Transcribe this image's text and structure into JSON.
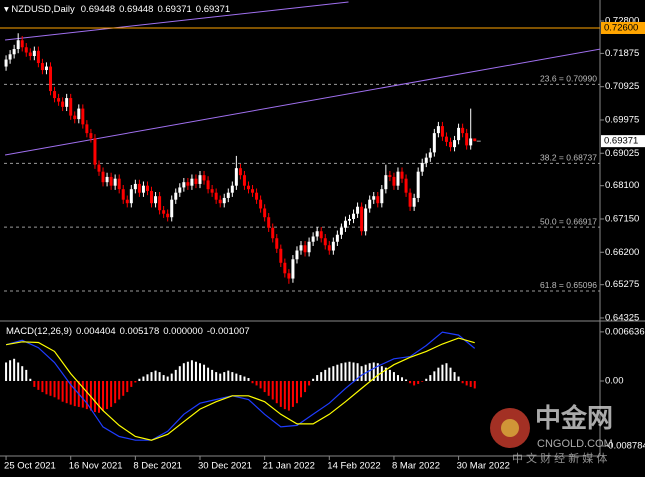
{
  "chart_data": [
    {
      "type": "candlestick",
      "title": "NZDUSD,Daily",
      "ohlc": [
        [
          0.715,
          0.7182,
          0.7138,
          0.717
        ],
        [
          0.717,
          0.7197,
          0.7158,
          0.7185
        ],
        [
          0.7185,
          0.7212,
          0.7173,
          0.72
        ],
        [
          0.72,
          0.7245,
          0.7188,
          0.7225
        ],
        [
          0.7225,
          0.7237,
          0.7193,
          0.7205
        ],
        [
          0.7205,
          0.7217,
          0.7178,
          0.719
        ],
        [
          0.719,
          0.7202,
          0.7168,
          0.718
        ],
        [
          0.718,
          0.7207,
          0.7168,
          0.7195
        ],
        [
          0.7195,
          0.7207,
          0.7148,
          0.716
        ],
        [
          0.716,
          0.7172,
          0.7128,
          0.714
        ],
        [
          0.714,
          0.7162,
          0.7128,
          0.715
        ],
        [
          0.715,
          0.7162,
          0.7068,
          0.708
        ],
        [
          0.708,
          0.7092,
          0.7048,
          0.706
        ],
        [
          0.706,
          0.7072,
          0.7038,
          0.705
        ],
        [
          0.705,
          0.7062,
          0.7023,
          0.7035
        ],
        [
          0.7035,
          0.7072,
          0.7023,
          0.706
        ],
        [
          0.706,
          0.7072,
          0.6998,
          0.701
        ],
        [
          0.701,
          0.7022,
          0.6988,
          0.7
        ],
        [
          0.7,
          0.7042,
          0.6988,
          0.703
        ],
        [
          0.703,
          0.7042,
          0.6973,
          0.6985
        ],
        [
          0.6985,
          0.6997,
          0.6948,
          0.696
        ],
        [
          0.696,
          0.6972,
          0.6933,
          0.6945
        ],
        [
          0.6945,
          0.6957,
          0.6858,
          0.687
        ],
        [
          0.687,
          0.6882,
          0.6838,
          0.685
        ],
        [
          0.685,
          0.6862,
          0.6808,
          0.682
        ],
        [
          0.682,
          0.6847,
          0.6808,
          0.6835
        ],
        [
          0.6835,
          0.6847,
          0.6798,
          0.681
        ],
        [
          0.681,
          0.6842,
          0.6798,
          0.683
        ],
        [
          0.683,
          0.6842,
          0.6788,
          0.68
        ],
        [
          0.68,
          0.6812,
          0.6758,
          0.677
        ],
        [
          0.677,
          0.6782,
          0.6748,
          0.676
        ],
        [
          0.676,
          0.6812,
          0.6748,
          0.68
        ],
        [
          0.68,
          0.6827,
          0.6788,
          0.6815
        ],
        [
          0.6815,
          0.6827,
          0.6778,
          0.679
        ],
        [
          0.679,
          0.6822,
          0.6778,
          0.681
        ],
        [
          0.681,
          0.6822,
          0.6783,
          0.6795
        ],
        [
          0.6795,
          0.6807,
          0.6748,
          0.676
        ],
        [
          0.676,
          0.6792,
          0.6748,
          0.678
        ],
        [
          0.678,
          0.6792,
          0.6728,
          0.674
        ],
        [
          0.674,
          0.6752,
          0.6718,
          0.673
        ],
        [
          0.673,
          0.6742,
          0.6708,
          0.672
        ],
        [
          0.672,
          0.6782,
          0.6708,
          0.677
        ],
        [
          0.677,
          0.6802,
          0.6758,
          0.679
        ],
        [
          0.679,
          0.6817,
          0.6778,
          0.6805
        ],
        [
          0.6805,
          0.6832,
          0.6793,
          0.682
        ],
        [
          0.682,
          0.6832,
          0.6798,
          0.681
        ],
        [
          0.681,
          0.6842,
          0.6798,
          0.683
        ],
        [
          0.683,
          0.6842,
          0.6803,
          0.6815
        ],
        [
          0.6815,
          0.6852,
          0.6803,
          0.684
        ],
        [
          0.684,
          0.6852,
          0.6813,
          0.6825
        ],
        [
          0.6825,
          0.6837,
          0.6788,
          0.68
        ],
        [
          0.68,
          0.6812,
          0.6778,
          0.679
        ],
        [
          0.679,
          0.6802,
          0.6758,
          0.677
        ],
        [
          0.677,
          0.6782,
          0.6748,
          0.676
        ],
        [
          0.676,
          0.6787,
          0.6748,
          0.6775
        ],
        [
          0.6775,
          0.6802,
          0.6763,
          0.679
        ],
        [
          0.679,
          0.6822,
          0.6778,
          0.681
        ],
        [
          0.681,
          0.6895,
          0.6798,
          0.686
        ],
        [
          0.686,
          0.6872,
          0.6828,
          0.684
        ],
        [
          0.684,
          0.6852,
          0.6798,
          0.681
        ],
        [
          0.681,
          0.6822,
          0.6788,
          0.68
        ],
        [
          0.68,
          0.6812,
          0.6778,
          0.679
        ],
        [
          0.679,
          0.6802,
          0.6758,
          0.677
        ],
        [
          0.677,
          0.6782,
          0.6733,
          0.6745
        ],
        [
          0.6745,
          0.6757,
          0.6708,
          0.672
        ],
        [
          0.672,
          0.6732,
          0.6678,
          0.669
        ],
        [
          0.669,
          0.6702,
          0.6648,
          0.666
        ],
        [
          0.666,
          0.6672,
          0.6618,
          0.663
        ],
        [
          0.663,
          0.6642,
          0.6578,
          0.659
        ],
        [
          0.659,
          0.6602,
          0.6548,
          0.656
        ],
        [
          0.656,
          0.6572,
          0.653,
          0.6545
        ],
        [
          0.6545,
          0.6612,
          0.6533,
          0.66
        ],
        [
          0.66,
          0.6637,
          0.6588,
          0.6625
        ],
        [
          0.6625,
          0.6652,
          0.6613,
          0.664
        ],
        [
          0.664,
          0.6652,
          0.6608,
          0.662
        ],
        [
          0.662,
          0.6662,
          0.6608,
          0.665
        ],
        [
          0.665,
          0.6677,
          0.6638,
          0.6665
        ],
        [
          0.6665,
          0.6692,
          0.6653,
          0.668
        ],
        [
          0.668,
          0.6692,
          0.6648,
          0.666
        ],
        [
          0.666,
          0.6672,
          0.6628,
          0.664
        ],
        [
          0.664,
          0.6652,
          0.6613,
          0.6625
        ],
        [
          0.6625,
          0.6662,
          0.6613,
          0.665
        ],
        [
          0.665,
          0.6682,
          0.6638,
          0.667
        ],
        [
          0.667,
          0.6702,
          0.6658,
          0.669
        ],
        [
          0.669,
          0.6722,
          0.6678,
          0.671
        ],
        [
          0.671,
          0.6727,
          0.6698,
          0.6715
        ],
        [
          0.6715,
          0.6742,
          0.6703,
          0.673
        ],
        [
          0.673,
          0.6762,
          0.6718,
          0.675
        ],
        [
          0.675,
          0.6762,
          0.6668,
          0.668
        ],
        [
          0.668,
          0.6757,
          0.6668,
          0.6745
        ],
        [
          0.6745,
          0.6782,
          0.6733,
          0.677
        ],
        [
          0.677,
          0.6792,
          0.6758,
          0.678
        ],
        [
          0.678,
          0.6792,
          0.6748,
          0.676
        ],
        [
          0.676,
          0.6812,
          0.6748,
          0.68
        ],
        [
          0.68,
          0.687,
          0.6788,
          0.684
        ],
        [
          0.684,
          0.6852,
          0.6823,
          0.6835
        ],
        [
          0.6835,
          0.6847,
          0.6798,
          0.681
        ],
        [
          0.681,
          0.6862,
          0.6798,
          0.685
        ],
        [
          0.685,
          0.6862,
          0.6818,
          0.683
        ],
        [
          0.683,
          0.6842,
          0.6778,
          0.679
        ],
        [
          0.679,
          0.6802,
          0.6738,
          0.675
        ],
        [
          0.675,
          0.6787,
          0.6738,
          0.6775
        ],
        [
          0.6775,
          0.6862,
          0.6763,
          0.685
        ],
        [
          0.685,
          0.6887,
          0.6838,
          0.6875
        ],
        [
          0.6875,
          0.6902,
          0.6863,
          0.689
        ],
        [
          0.689,
          0.6917,
          0.6878,
          0.6905
        ],
        [
          0.6905,
          0.6972,
          0.6893,
          0.696
        ],
        [
          0.696,
          0.6992,
          0.6948,
          0.698
        ],
        [
          0.698,
          0.6992,
          0.6938,
          0.695
        ],
        [
          0.695,
          0.6962,
          0.6923,
          0.6935
        ],
        [
          0.6935,
          0.6947,
          0.6908,
          0.692
        ],
        [
          0.692,
          0.6952,
          0.6908,
          0.694
        ],
        [
          0.694,
          0.6987,
          0.6928,
          0.6975
        ],
        [
          0.6975,
          0.6987,
          0.6948,
          0.696
        ],
        [
          0.696,
          0.6972,
          0.6913,
          0.6925
        ],
        [
          0.6925,
          0.703,
          0.6913,
          0.69448
        ],
        [
          0.69448,
          0.69448,
          0.69371,
          0.69371
        ]
      ],
      "up_color": "#ffffff",
      "down_color": "#ff0000",
      "xlim": [
        -1.5,
        147
      ],
      "ylim": [
        0.64267,
        0.73399
      ],
      "yticks": [
        {
          "value": 0.728,
          "label": "0.72800"
        },
        {
          "value": 0.71875,
          "label": "0.71875"
        },
        {
          "value": 0.70925,
          "label": "0.70925"
        },
        {
          "value": 0.69975,
          "label": "0.69975"
        },
        {
          "value": 0.69025,
          "label": "0.69025"
        },
        {
          "value": 0.681,
          "label": "0.68100"
        },
        {
          "value": 0.6715,
          "label": "0.67150"
        },
        {
          "value": 0.662,
          "label": "0.66200"
        },
        {
          "value": 0.65275,
          "label": "0.65275"
        },
        {
          "value": 0.64325,
          "label": "0.64325"
        }
      ],
      "xticks": [
        {
          "value": 0,
          "label": "25 Oct 2021"
        },
        {
          "value": 16,
          "label": "16 Nov 2021"
        },
        {
          "value": 32,
          "label": "8 Dec 2021"
        },
        {
          "value": 48,
          "label": "30 Dec 2021"
        },
        {
          "value": 64,
          "label": "21 Jan 2022"
        },
        {
          "value": 80,
          "label": "14 Feb 2022"
        },
        {
          "value": 96,
          "label": "8 Mar 2022"
        },
        {
          "value": 112,
          "label": "30 Mar 2022"
        }
      ],
      "hline": {
        "value": 0.726,
        "label": "0.72600",
        "color": "#ffa500"
      },
      "levels": [
        {
          "value": 0.7099,
          "label": "23.6 = 0.70990"
        },
        {
          "value": 0.68737,
          "label": "38.2 = 0.68737"
        },
        {
          "value": 0.66917,
          "label": "50.0 = 0.66917"
        },
        {
          "value": 0.65096,
          "label": "61.8 = 0.65096"
        }
      ],
      "level_color": "#9a9a9a",
      "trendlines": [
        {
          "color": "#a070f0",
          "points": [
            [
              -0.25,
              0.72258
            ],
            [
              84.75,
              0.73342
            ]
          ]
        },
        {
          "color": "#a070f0",
          "points": [
            [
              -0.25,
              0.68976
            ],
            [
              148.5,
              0.72029
            ]
          ]
        }
      ]
    },
    {
      "type": "macd",
      "title": "MACD(12,26,9)",
      "histogram": [
        0.0025,
        0.0028,
        0.003,
        0.0025,
        0.002,
        0.0015,
        0.0003,
        -0.0008,
        -0.0012,
        -0.0015,
        -0.0018,
        -0.002,
        -0.0022,
        -0.0025,
        -0.0028,
        -0.003,
        -0.0032,
        -0.0034,
        -0.0035,
        -0.0036,
        -0.0038,
        -0.004,
        -0.0042,
        -0.0043,
        -0.004,
        -0.0038,
        -0.0035,
        -0.003,
        -0.0025,
        -0.002,
        -0.0015,
        -0.0008,
        -0.0002,
        0.0003,
        0.0006,
        0.0009,
        0.0012,
        0.0014,
        0.0012,
        0.0008,
        0.0006,
        0.001,
        0.0015,
        0.002,
        0.0024,
        0.0026,
        0.0028,
        0.0026,
        0.0024,
        0.0022,
        0.0018,
        0.0015,
        0.0012,
        0.001,
        0.0012,
        0.0014,
        0.0012,
        0.001,
        0.0008,
        0.0006,
        0.0004,
        -0.0003,
        -0.0006,
        -0.001,
        -0.0015,
        -0.002,
        -0.0025,
        -0.003,
        -0.0035,
        -0.0038,
        -0.004,
        -0.0035,
        -0.003,
        -0.0022,
        -0.0015,
        -0.0006,
        0.0003,
        0.0008,
        0.0012,
        0.0015,
        0.0018,
        0.002,
        0.0022,
        0.0024,
        0.0025,
        0.0026,
        0.0025,
        0.0024,
        0.002,
        0.0022,
        0.0024,
        0.0025,
        0.0024,
        0.002,
        0.0018,
        0.0015,
        0.0012,
        0.0008,
        0.0005,
        0.0002,
        -0.0003,
        -0.0006,
        -0.0004,
        -0.0001,
        0.0003,
        0.0008,
        0.0013,
        0.0018,
        0.0022,
        0.0024,
        0.0018,
        0.0012,
        0.0006,
        -0.0003,
        -0.0006,
        -0.0008,
        -0.001007
      ],
      "hist_up_color": "#ffffff",
      "hist_down_color": "#ff0000",
      "series": [
        {
          "color": "#1e3cff",
          "x": [
            0,
            4,
            8,
            12,
            16,
            20,
            24,
            28,
            32,
            36,
            40,
            44,
            48,
            52,
            56,
            60,
            64,
            68,
            72,
            76,
            80,
            84,
            88,
            92,
            96,
            100,
            104,
            108,
            112,
            116
          ],
          "values": [
            0.0049,
            0.0055,
            0.0045,
            0.0025,
            -0.0005,
            -0.003,
            -0.0062,
            -0.0075,
            -0.008,
            -0.008,
            -0.0068,
            -0.0045,
            -0.003,
            -0.0025,
            -0.002,
            -0.0025,
            -0.0045,
            -0.0062,
            -0.006,
            -0.0045,
            -0.003,
            -0.001,
            0.0008,
            0.002,
            0.003,
            0.0033,
            0.0048,
            0.0066,
            0.0062,
            0.004404
          ]
        },
        {
          "color": "#ffff00",
          "x": [
            0,
            4,
            8,
            12,
            16,
            20,
            24,
            28,
            32,
            36,
            40,
            44,
            48,
            52,
            56,
            60,
            64,
            68,
            72,
            76,
            80,
            84,
            88,
            92,
            96,
            100,
            104,
            108,
            112,
            116
          ],
          "values": [
            0.0049,
            0.0053,
            0.0052,
            0.004,
            0.001,
            -0.0015,
            -0.004,
            -0.006,
            -0.0075,
            -0.008,
            -0.0072,
            -0.0055,
            -0.0038,
            -0.0028,
            -0.002,
            -0.002,
            -0.0028,
            -0.0045,
            -0.0058,
            -0.0058,
            -0.0045,
            -0.0028,
            -0.001,
            0.0008,
            0.0022,
            0.0032,
            0.004,
            0.005,
            0.0058,
            0.005178
          ]
        }
      ],
      "buffer3": {
        "value": 0,
        "label": "0.000000"
      },
      "xlim": [
        -1.5,
        147
      ],
      "ylim": [
        -0.010135,
        0.00797
      ],
      "yticks": [
        0.006636,
        {
          "value": 0,
          "label": "0.00"
        },
        -0.008784
      ]
    }
  ],
  "watermark": {
    "name": "中金网",
    "site": "CNGOLD.COM",
    "slogan": "中 文 财 经 新 媒 体"
  }
}
